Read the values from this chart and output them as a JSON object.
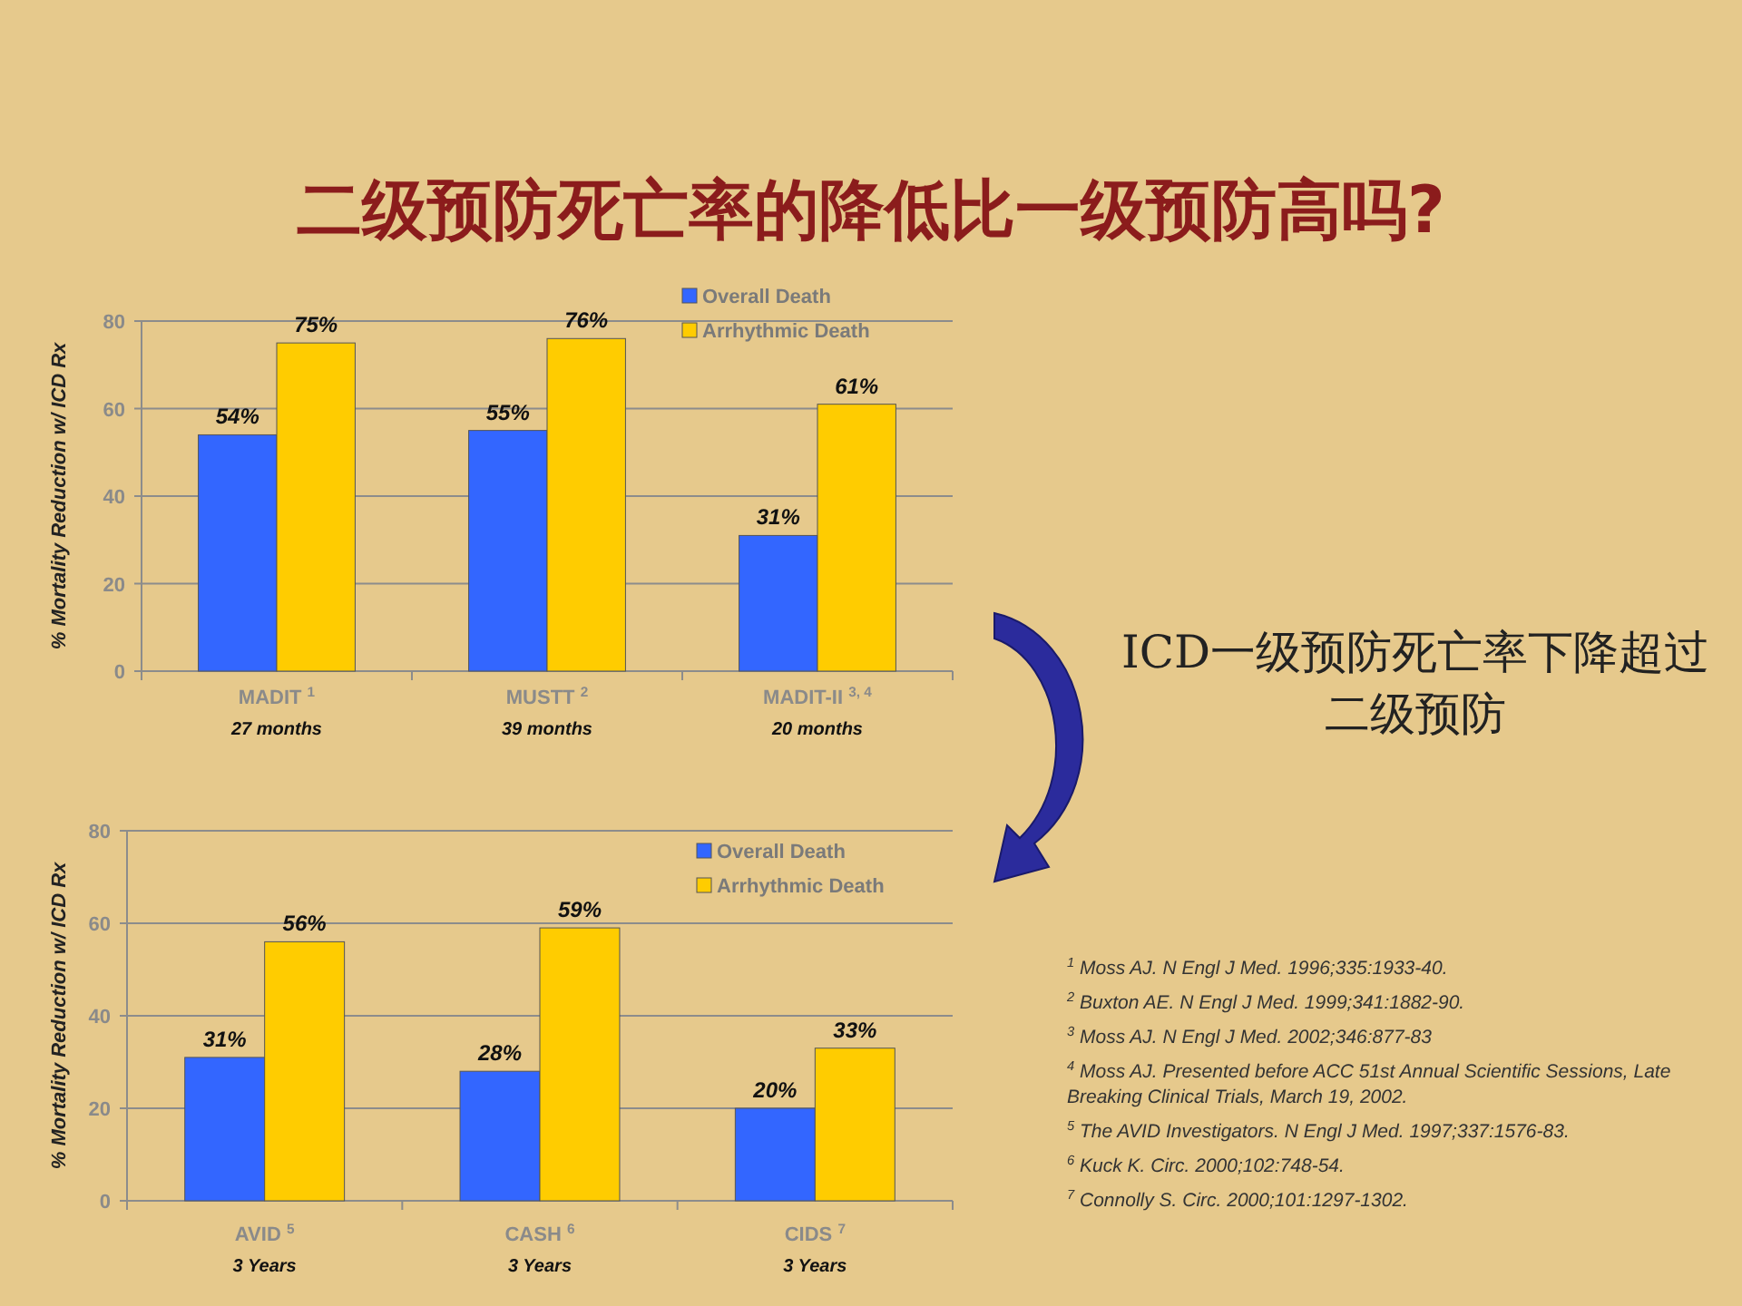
{
  "chart_data": [
    {
      "type": "bar",
      "title": "二级预防死亡率的降低比一级预防高吗?",
      "ylabel": "% Mortality Reduction w/ ICD Rx",
      "categories": [
        "MADIT $^{1}$",
        "MUSTT $^{2}$",
        "MADIT-II $^{3, 4}$"
      ],
      "annotations": [
        "27 months",
        "39 months",
        "20 months"
      ],
      "ylim": [
        0,
        80
      ],
      "yticks": [
        0,
        20,
        40,
        60,
        80
      ],
      "grid": "y",
      "legend": "top right",
      "series": [
        {
          "name": "Overall Death",
          "color": "#3366ff",
          "values": [
            54,
            55,
            31
          ],
          "value_labels": [
            "54%",
            "55%",
            "31%"
          ]
        },
        {
          "name": "Arrhythmic Death",
          "color": "#ffcc00",
          "values": [
            75,
            76,
            61
          ],
          "value_labels": [
            "75%",
            "76%",
            "61%"
          ]
        }
      ]
    },
    {
      "type": "bar",
      "ylabel": "% Mortality Reduction w/ ICD Rx",
      "categories": [
        "AVID $^{5}$",
        "CASH $^{6}$",
        "CIDS $^{7}$"
      ],
      "annotations": [
        "3 Years",
        "3 Years",
        "3 Years"
      ],
      "ylim": [
        0,
        80
      ],
      "yticks": [
        0,
        20,
        40,
        60,
        80
      ],
      "grid": "y",
      "legend": "top right",
      "series": [
        {
          "name": "Overall Death",
          "color": "#3366ff",
          "values": [
            31,
            28,
            20
          ],
          "value_labels": [
            "31%",
            "28%",
            "20%"
          ]
        },
        {
          "name": "Arrhythmic Death",
          "color": "#ffcc00",
          "values": [
            56,
            59,
            33
          ],
          "value_labels": [
            "56%",
            "59%",
            "33%"
          ]
        }
      ]
    },
    {
      "type": "other",
      "annotations": [
        "ICD一级预防死亡率下降超过二级预防",
        "$^{1}$ Moss AJ. N Engl J Med. 1996;335:1933-40.",
        "$^{2}$ Buxton AE. N Engl J Med. 1999;341:1882-90.",
        "$^{3}$ Moss AJ. N Engl J Med. 2002;346:877-83",
        "$^{4}$ Moss AJ. Presented before ACC 51st Annual Scientific Sessions, Late Breaking Clinical Trials, March 19, 2002.",
        "$^{5}$ The AVID Investigators. N Engl J Med. 1997;337:1576-83.",
        "$^{6}$ Kuck K. Circ. 2000;102:748-54.",
        "$^{7}$ Connolly S. Circ. 2000;101:1297-1302."
      ]
    }
  ]
}
